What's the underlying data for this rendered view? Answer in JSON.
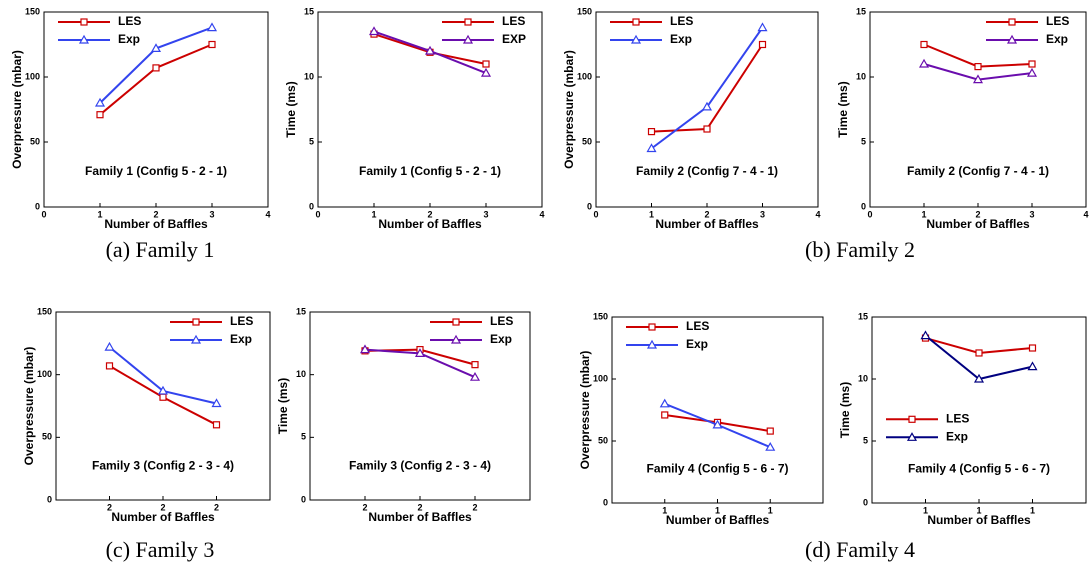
{
  "chart_data": [
    {
      "type": "line",
      "annotation": "Family 1 (Config 5 - 2 - 1)",
      "x_label": "Number of Baffles",
      "y_label": "Overpressure (mbar)",
      "x": [
        1,
        2,
        3
      ],
      "xlim": [
        0,
        4
      ],
      "xticks": [
        0,
        1,
        2,
        3,
        4
      ],
      "ylim": [
        0,
        150
      ],
      "yticks": [
        0,
        50,
        100,
        150
      ],
      "legend": "upper left",
      "series": [
        {
          "name": "LES",
          "color": "#cc0000",
          "marker": "square",
          "values": [
            71,
            107,
            125
          ]
        },
        {
          "name": "Exp",
          "color": "#3344ee",
          "marker": "triangle",
          "values": [
            80,
            122,
            138
          ]
        }
      ]
    },
    {
      "type": "line",
      "annotation": "Family 1 (Config 5 - 2 - 1)",
      "x_label": "Number of Baffles",
      "y_label": "Time (ms)",
      "x": [
        1,
        2,
        3
      ],
      "xlim": [
        0,
        4
      ],
      "xticks": [
        0,
        1,
        2,
        3,
        4
      ],
      "ylim": [
        0,
        15
      ],
      "yticks": [
        0,
        5,
        10,
        15
      ],
      "legend": "upper right",
      "series": [
        {
          "name": "LES",
          "color": "#cc0000",
          "marker": "square",
          "values": [
            13.3,
            11.9,
            11.0
          ]
        },
        {
          "name": "EXP",
          "color": "#6a0dad",
          "marker": "triangle",
          "values": [
            13.5,
            12.0,
            10.3
          ]
        }
      ]
    },
    {
      "type": "line",
      "annotation": "Family 2 (Config 7 - 4 - 1)",
      "x_label": "Number of Baffles",
      "y_label": "Overpressure (mbar)",
      "x": [
        1,
        2,
        3
      ],
      "xlim": [
        0,
        4
      ],
      "xticks": [
        0,
        1,
        2,
        3,
        4
      ],
      "ylim": [
        0,
        150
      ],
      "yticks": [
        0,
        50,
        100,
        150
      ],
      "legend": "upper left",
      "series": [
        {
          "name": "LES",
          "color": "#cc0000",
          "marker": "square",
          "values": [
            58,
            60,
            125
          ]
        },
        {
          "name": "Exp",
          "color": "#3344ee",
          "marker": "triangle",
          "values": [
            45,
            77,
            138
          ]
        }
      ]
    },
    {
      "type": "line",
      "annotation": "Family 2 (Config 7 - 4 - 1)",
      "x_label": "Number of Baffles",
      "y_label": "Time (ms)",
      "x": [
        1,
        2,
        3
      ],
      "xlim": [
        0,
        4
      ],
      "xticks": [
        0,
        1,
        2,
        3,
        4
      ],
      "ylim": [
        0,
        15
      ],
      "yticks": [
        0,
        5,
        10,
        15
      ],
      "legend": "upper right",
      "series": [
        {
          "name": "LES",
          "color": "#cc0000",
          "marker": "square",
          "values": [
            12.5,
            10.8,
            11.0
          ]
        },
        {
          "name": "Exp",
          "color": "#6a0dad",
          "marker": "triangle",
          "values": [
            11.0,
            9.8,
            10.3
          ]
        }
      ]
    },
    {
      "type": "line",
      "annotation": "Family 3 (Config 2 - 3 - 4)",
      "x_label": "Number of Baffles",
      "y_label": "Overpressure (mbar)",
      "x": [
        1,
        2,
        3
      ],
      "xlim": [
        0,
        4
      ],
      "xticks": [
        {
          "value": 1,
          "label": "2"
        },
        {
          "value": 2,
          "label": "2"
        },
        {
          "value": 3,
          "label": "2"
        }
      ],
      "ylim": [
        0,
        150
      ],
      "yticks": [
        0,
        50,
        100,
        150
      ],
      "legend": "upper right",
      "series": [
        {
          "name": "LES",
          "color": "#cc0000",
          "marker": "square",
          "values": [
            107,
            82,
            60
          ]
        },
        {
          "name": "Exp",
          "color": "#3344ee",
          "marker": "triangle",
          "values": [
            122,
            87,
            77
          ]
        }
      ]
    },
    {
      "type": "line",
      "annotation": "Family 3 (Config 2 - 3 - 4)",
      "x_label": "Number of Baffles",
      "y_label": "Time (ms)",
      "x": [
        1,
        2,
        3
      ],
      "xlim": [
        0,
        4
      ],
      "xticks": [
        {
          "value": 1,
          "label": "2"
        },
        {
          "value": 2,
          "label": "2"
        },
        {
          "value": 3,
          "label": "2"
        }
      ],
      "ylim": [
        0,
        15
      ],
      "yticks": [
        0,
        5,
        10,
        15
      ],
      "legend": "upper right",
      "series": [
        {
          "name": "LES",
          "color": "#cc0000",
          "marker": "square",
          "values": [
            11.9,
            12.0,
            10.8
          ]
        },
        {
          "name": "Exp",
          "color": "#6a0dad",
          "marker": "triangle",
          "values": [
            12.0,
            11.7,
            9.8
          ]
        }
      ]
    },
    {
      "type": "line",
      "annotation": "Family 4 (Config 5 - 6 - 7)",
      "x_label": "Number of Baffles",
      "y_label": "Overpressure (mbar)",
      "x": [
        1,
        2,
        3
      ],
      "xlim": [
        0,
        4
      ],
      "xticks": [
        {
          "value": 1,
          "label": "1"
        },
        {
          "value": 2,
          "label": "1"
        },
        {
          "value": 3,
          "label": "1"
        }
      ],
      "ylim": [
        0,
        150
      ],
      "yticks": [
        0,
        50,
        100,
        150
      ],
      "legend": "upper left",
      "series": [
        {
          "name": "LES",
          "color": "#cc0000",
          "marker": "square",
          "values": [
            71,
            65,
            58
          ]
        },
        {
          "name": "Exp",
          "color": "#3344ee",
          "marker": "triangle",
          "values": [
            80,
            63,
            45
          ]
        }
      ]
    },
    {
      "type": "line",
      "annotation": "Family 4 (Config 5 - 6 - 7)",
      "x_label": "Number of Baffles",
      "y_label": "Time (ms)",
      "x": [
        1,
        2,
        3
      ],
      "xlim": [
        0,
        4
      ],
      "xticks": [
        {
          "value": 1,
          "label": "1"
        },
        {
          "value": 2,
          "label": "1"
        },
        {
          "value": 3,
          "label": "1"
        }
      ],
      "ylim": [
        0,
        15
      ],
      "yticks": [
        0,
        5,
        10,
        15
      ],
      "legend": "center left",
      "series": [
        {
          "name": "LES",
          "color": "#cc0000",
          "marker": "square",
          "values": [
            13.3,
            12.1,
            12.5
          ]
        },
        {
          "name": "Exp",
          "color": "#000080",
          "marker": "triangle",
          "values": [
            13.5,
            10.0,
            11.0
          ]
        }
      ]
    }
  ],
  "captions": [
    "(a) Family 1",
    "(b) Family 2",
    "(c) Family 3",
    "(d) Family 4"
  ]
}
